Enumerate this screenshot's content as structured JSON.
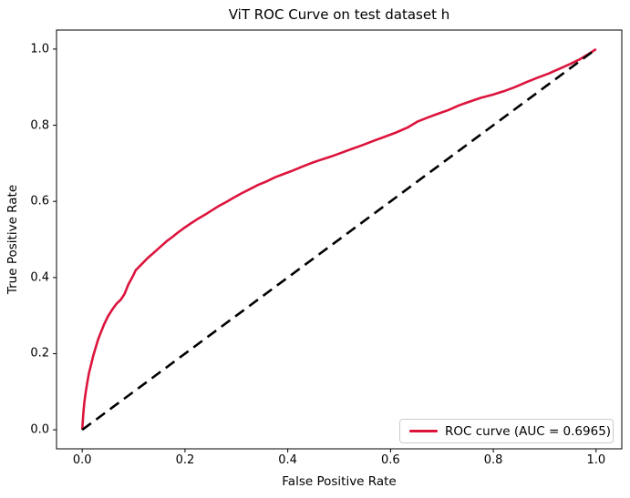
{
  "figure": {
    "background": "#ffffff",
    "frame_color": "#000000"
  },
  "chart_data": {
    "type": "line",
    "title": "ViT ROC Curve on test dataset h",
    "xlabel": "False Positive Rate",
    "ylabel": "True Positive Rate",
    "xlim": [
      -0.05,
      1.05
    ],
    "ylim": [
      -0.05,
      1.05
    ],
    "grid": false,
    "xticks": {
      "values": [
        0.0,
        0.2,
        0.4,
        0.6,
        0.8,
        1.0
      ],
      "labels": [
        "0.0",
        "0.2",
        "0.4",
        "0.6",
        "0.8",
        "1.0"
      ]
    },
    "yticks": {
      "values": [
        0.0,
        0.2,
        0.4,
        0.6,
        0.8,
        1.0
      ],
      "labels": [
        "0.0",
        "0.2",
        "0.4",
        "0.6",
        "0.8",
        "1.0"
      ]
    },
    "auc": 0.6965,
    "legend": {
      "position": "lower right",
      "entries": [
        {
          "label": "ROC curve (AUC = 0.6965)",
          "color": "#DC143C",
          "style": "solid"
        }
      ]
    },
    "series": [
      {
        "name": "ROC curve (AUC = 0.6965)",
        "id": "roc-curve-line",
        "color": "#DC143C",
        "style": "solid",
        "width": 2.6,
        "points": [
          [
            0.0,
            0.0
          ],
          [
            0.002,
            0.04
          ],
          [
            0.004,
            0.07
          ],
          [
            0.007,
            0.1
          ],
          [
            0.01,
            0.125
          ],
          [
            0.013,
            0.148
          ],
          [
            0.017,
            0.17
          ],
          [
            0.021,
            0.192
          ],
          [
            0.026,
            0.215
          ],
          [
            0.031,
            0.238
          ],
          [
            0.037,
            0.258
          ],
          [
            0.043,
            0.278
          ],
          [
            0.05,
            0.298
          ],
          [
            0.058,
            0.315
          ],
          [
            0.066,
            0.33
          ],
          [
            0.075,
            0.342
          ],
          [
            0.082,
            0.356
          ],
          [
            0.09,
            0.382
          ],
          [
            0.098,
            0.402
          ],
          [
            0.104,
            0.419
          ],
          [
            0.112,
            0.43
          ],
          [
            0.12,
            0.441
          ],
          [
            0.128,
            0.452
          ],
          [
            0.136,
            0.461
          ],
          [
            0.145,
            0.472
          ],
          [
            0.155,
            0.484
          ],
          [
            0.164,
            0.495
          ],
          [
            0.175,
            0.506
          ],
          [
            0.186,
            0.518
          ],
          [
            0.198,
            0.53
          ],
          [
            0.21,
            0.541
          ],
          [
            0.224,
            0.553
          ],
          [
            0.239,
            0.565
          ],
          [
            0.252,
            0.576
          ],
          [
            0.266,
            0.588
          ],
          [
            0.28,
            0.598
          ],
          [
            0.295,
            0.61
          ],
          [
            0.31,
            0.621
          ],
          [
            0.326,
            0.632
          ],
          [
            0.342,
            0.643
          ],
          [
            0.358,
            0.652
          ],
          [
            0.375,
            0.663
          ],
          [
            0.392,
            0.672
          ],
          [
            0.41,
            0.681
          ],
          [
            0.428,
            0.691
          ],
          [
            0.447,
            0.701
          ],
          [
            0.466,
            0.71
          ],
          [
            0.485,
            0.718
          ],
          [
            0.505,
            0.728
          ],
          [
            0.525,
            0.738
          ],
          [
            0.546,
            0.748
          ],
          [
            0.567,
            0.759
          ],
          [
            0.589,
            0.77
          ],
          [
            0.611,
            0.781
          ],
          [
            0.633,
            0.794
          ],
          [
            0.653,
            0.81
          ],
          [
            0.672,
            0.82
          ],
          [
            0.692,
            0.83
          ],
          [
            0.713,
            0.84
          ],
          [
            0.733,
            0.852
          ],
          [
            0.754,
            0.862
          ],
          [
            0.776,
            0.872
          ],
          [
            0.798,
            0.88
          ],
          [
            0.82,
            0.889
          ],
          [
            0.842,
            0.9
          ],
          [
            0.864,
            0.913
          ],
          [
            0.886,
            0.925
          ],
          [
            0.908,
            0.936
          ],
          [
            0.93,
            0.949
          ],
          [
            0.95,
            0.961
          ],
          [
            0.968,
            0.973
          ],
          [
            0.984,
            0.986
          ],
          [
            1.0,
            1.0
          ]
        ]
      },
      {
        "name": "chance diagonal",
        "id": "chance-diagonal-line",
        "color": "#000000",
        "style": "dashed",
        "width": 2.6,
        "points": [
          [
            0.0,
            0.0
          ],
          [
            1.0,
            1.0
          ]
        ]
      }
    ]
  }
}
